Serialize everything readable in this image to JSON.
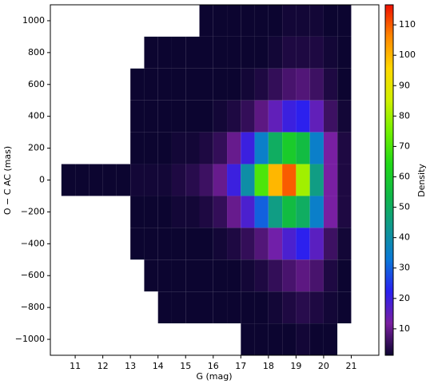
{
  "chart_data": {
    "type": "heatmap",
    "x_label": "G (mag)",
    "y_label": "O − C  AC (mas)",
    "colorbar_label": "Density",
    "x_bins": [
      10.5,
      11,
      11.5,
      12,
      12.5,
      13,
      13.5,
      14,
      14.5,
      15,
      15.5,
      16,
      16.5,
      17,
      17.5,
      18,
      18.5,
      19,
      19.5,
      20,
      20.5,
      21,
      21.5,
      22
    ],
    "y_bins": [
      1100,
      900,
      700,
      500,
      300,
      100,
      -100,
      -300,
      -500,
      -700,
      -900,
      -1100
    ],
    "z": [
      [
        0,
        0,
        0,
        0,
        0,
        0,
        0,
        0,
        0,
        0,
        1,
        1,
        1,
        1,
        1,
        1,
        2,
        2,
        2,
        1,
        1,
        0,
        0
      ],
      [
        0,
        0,
        0,
        0,
        0,
        0,
        1,
        1,
        1,
        1,
        1,
        1,
        1,
        1,
        1,
        2,
        3,
        3,
        3,
        2,
        1,
        0,
        0
      ],
      [
        0,
        0,
        0,
        0,
        0,
        1,
        1,
        1,
        1,
        1,
        1,
        1,
        1,
        2,
        3,
        5,
        7,
        8,
        6,
        3,
        1,
        0,
        0
      ],
      [
        0,
        0,
        0,
        0,
        0,
        1,
        1,
        1,
        1,
        1,
        1,
        2,
        3,
        5,
        9,
        15,
        20,
        22,
        15,
        6,
        2,
        0,
        0
      ],
      [
        0,
        0,
        0,
        0,
        0,
        1,
        1,
        1,
        2,
        2,
        3,
        5,
        10,
        20,
        35,
        50,
        60,
        55,
        35,
        12,
        3,
        0,
        0
      ],
      [
        1,
        1,
        1,
        1,
        1,
        2,
        2,
        2,
        3,
        4,
        6,
        10,
        20,
        40,
        70,
        100,
        110,
        80,
        45,
        12,
        3,
        0,
        0
      ],
      [
        0,
        0,
        0,
        0,
        0,
        1,
        1,
        1,
        2,
        2,
        3,
        5,
        10,
        18,
        30,
        45,
        55,
        50,
        35,
        12,
        3,
        0,
        0
      ],
      [
        0,
        0,
        0,
        0,
        0,
        1,
        1,
        1,
        1,
        1,
        1,
        2,
        3,
        5,
        8,
        13,
        18,
        22,
        16,
        6,
        2,
        0,
        0
      ],
      [
        0,
        0,
        0,
        0,
        0,
        0,
        1,
        1,
        1,
        1,
        1,
        1,
        1,
        2,
        3,
        5,
        7,
        9,
        7,
        3,
        1,
        0,
        0
      ],
      [
        0,
        0,
        0,
        0,
        0,
        0,
        0,
        1,
        1,
        1,
        1,
        1,
        1,
        1,
        1,
        2,
        3,
        4,
        3,
        2,
        1,
        0,
        0
      ],
      [
        0,
        0,
        0,
        0,
        0,
        0,
        0,
        0,
        0,
        0,
        0,
        0,
        0,
        1,
        1,
        1,
        1,
        2,
        1,
        1,
        0,
        0,
        0
      ]
    ],
    "colorscale": [
      "#0c0530",
      "#7a1fa0",
      "#2a20f0",
      "#0a78d8",
      "#109890",
      "#10b848",
      "#20d818",
      "#70f000",
      "#d0f000",
      "#ffd800",
      "#ff8800",
      "#ee1000"
    ],
    "xlim": [
      10.1,
      22.0
    ],
    "ylim": [
      -1100,
      1100
    ],
    "clim": [
      1.3,
      116.6
    ],
    "xticks": [
      11,
      12,
      13,
      14,
      15,
      16,
      17,
      18,
      19,
      20,
      21
    ],
    "yticks": [
      {
        "value": -1000,
        "label": "−1000"
      },
      {
        "value": -800,
        "label": "−800"
      },
      {
        "value": -600,
        "label": "−600"
      },
      {
        "value": -400,
        "label": "−400"
      },
      {
        "value": -200,
        "label": "−200"
      },
      0,
      200,
      400,
      600,
      800,
      1000
    ],
    "cticks": [
      10,
      20,
      30,
      40,
      50,
      60,
      70,
      80,
      90,
      100,
      110
    ]
  }
}
